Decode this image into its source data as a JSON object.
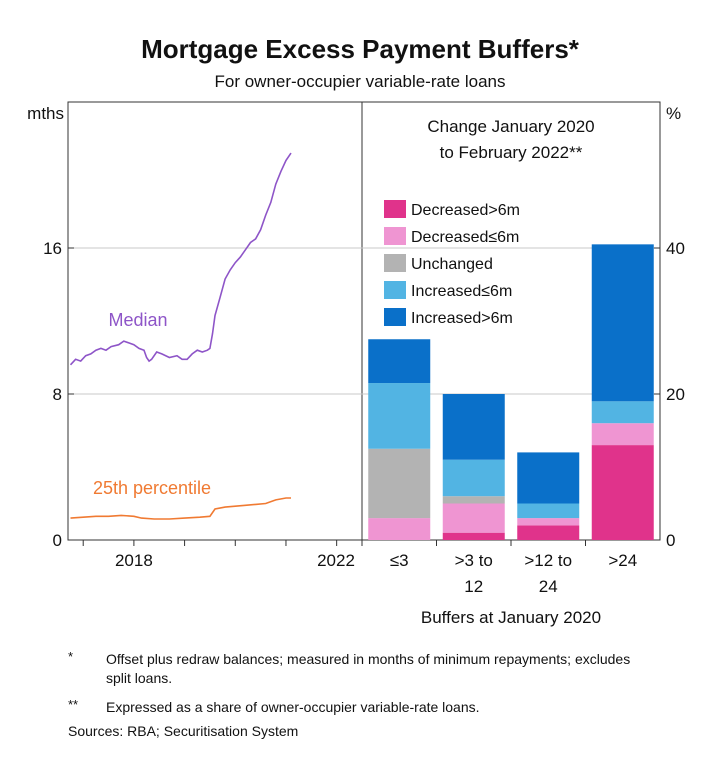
{
  "title": "Mortgage Excess Payment Buffers*",
  "subtitle": "For owner-occupier variable-rate loans",
  "colors": {
    "median": "#8e55c8",
    "p25": "#f07a32",
    "decreased_gt6m": "#e0338b",
    "decreased_le6m": "#ef95d2",
    "unchanged": "#b3b3b3",
    "increased_le6m": "#52b4e3",
    "increased_gt6m": "#0a70c9",
    "grid": "#c8c8c8",
    "axis": "#333333"
  },
  "chart_data": [
    {
      "type": "line",
      "ylabel": "mths",
      "ylim": [
        0,
        24
      ],
      "yticks": [
        0,
        8,
        16
      ],
      "xticks": [
        "2018",
        "2022"
      ],
      "xlim": [
        2016.7,
        2022.5
      ],
      "series": [
        {
          "name": "Median",
          "points": [
            [
              2016.75,
              9.6
            ],
            [
              2016.85,
              9.9
            ],
            [
              2016.95,
              9.8
            ],
            [
              2017.05,
              10.1
            ],
            [
              2017.15,
              10.2
            ],
            [
              2017.25,
              10.4
            ],
            [
              2017.35,
              10.5
            ],
            [
              2017.45,
              10.4
            ],
            [
              2017.55,
              10.6
            ],
            [
              2017.7,
              10.7
            ],
            [
              2017.8,
              10.9
            ],
            [
              2017.9,
              10.8
            ],
            [
              2018.0,
              10.7
            ],
            [
              2018.1,
              10.5
            ],
            [
              2018.2,
              10.4
            ],
            [
              2018.25,
              10.0
            ],
            [
              2018.3,
              9.8
            ],
            [
              2018.35,
              9.9
            ],
            [
              2018.45,
              10.3
            ],
            [
              2018.55,
              10.2
            ],
            [
              2018.7,
              10.0
            ],
            [
              2018.85,
              10.1
            ],
            [
              2018.95,
              9.9
            ],
            [
              2019.05,
              9.9
            ],
            [
              2019.15,
              10.2
            ],
            [
              2019.25,
              10.4
            ],
            [
              2019.35,
              10.3
            ],
            [
              2019.45,
              10.4
            ],
            [
              2019.5,
              10.5
            ],
            [
              2019.55,
              11.3
            ],
            [
              2019.6,
              12.3
            ],
            [
              2019.7,
              13.3
            ],
            [
              2019.8,
              14.3
            ],
            [
              2019.9,
              14.8
            ],
            [
              2020.0,
              15.2
            ],
            [
              2020.1,
              15.5
            ],
            [
              2020.2,
              15.9
            ],
            [
              2020.3,
              16.3
            ],
            [
              2020.4,
              16.5
            ],
            [
              2020.5,
              17.0
            ],
            [
              2020.6,
              17.8
            ],
            [
              2020.7,
              18.5
            ],
            [
              2020.8,
              19.5
            ],
            [
              2020.9,
              20.2
            ],
            [
              2021.0,
              20.8
            ],
            [
              2021.1,
              21.2
            ]
          ]
        },
        {
          "name": "25th percentile",
          "points": [
            [
              2016.75,
              1.2
            ],
            [
              2017.0,
              1.25
            ],
            [
              2017.25,
              1.3
            ],
            [
              2017.5,
              1.3
            ],
            [
              2017.75,
              1.35
            ],
            [
              2018.0,
              1.3
            ],
            [
              2018.15,
              1.2
            ],
            [
              2018.4,
              1.15
            ],
            [
              2018.7,
              1.15
            ],
            [
              2019.0,
              1.2
            ],
            [
              2019.3,
              1.25
            ],
            [
              2019.5,
              1.3
            ],
            [
              2019.6,
              1.7
            ],
            [
              2019.8,
              1.8
            ],
            [
              2020.0,
              1.85
            ],
            [
              2020.2,
              1.9
            ],
            [
              2020.4,
              1.95
            ],
            [
              2020.6,
              2.0
            ],
            [
              2020.8,
              2.2
            ],
            [
              2021.0,
              2.3
            ],
            [
              2021.1,
              2.3
            ]
          ]
        }
      ]
    },
    {
      "type": "bar",
      "stacked": true,
      "title": "Change January 2020 to February 2022**",
      "title_lines": [
        "Change January 2020",
        "to February 2022**"
      ],
      "ylabel": "%",
      "ylim": [
        0,
        60
      ],
      "yticks": [
        0,
        20,
        40
      ],
      "xlabel": "Buffers at January 2020",
      "categories": [
        "≤3",
        ">3 to 12",
        ">12 to 24",
        ">24"
      ],
      "category_lines": [
        [
          "≤3"
        ],
        [
          ">3 to",
          "12"
        ],
        [
          ">12 to",
          "24"
        ],
        [
          ">24"
        ]
      ],
      "series": [
        {
          "name": "Decreased>6m",
          "values": [
            0.0,
            1.0,
            2.0,
            13.0
          ]
        },
        {
          "name": "Decreased≤6m",
          "values": [
            3.0,
            4.0,
            1.0,
            3.0
          ]
        },
        {
          "name": "Unchanged",
          "values": [
            9.5,
            1.0,
            0.0,
            0.0
          ]
        },
        {
          "name": "Increased≤6m",
          "values": [
            9.0,
            5.0,
            2.0,
            3.0
          ]
        },
        {
          "name": "Increased>6m",
          "values": [
            6.0,
            9.0,
            7.0,
            21.5
          ]
        }
      ],
      "legend_position": "top-left"
    }
  ],
  "footnotes": [
    {
      "mark": "*",
      "text": "Offset plus redraw balances; measured in months of minimum repayments; excludes split loans."
    },
    {
      "mark": "**",
      "text": "Expressed as a share of owner-occupier variable-rate loans."
    }
  ],
  "sources": "Sources: RBA; Securitisation System"
}
